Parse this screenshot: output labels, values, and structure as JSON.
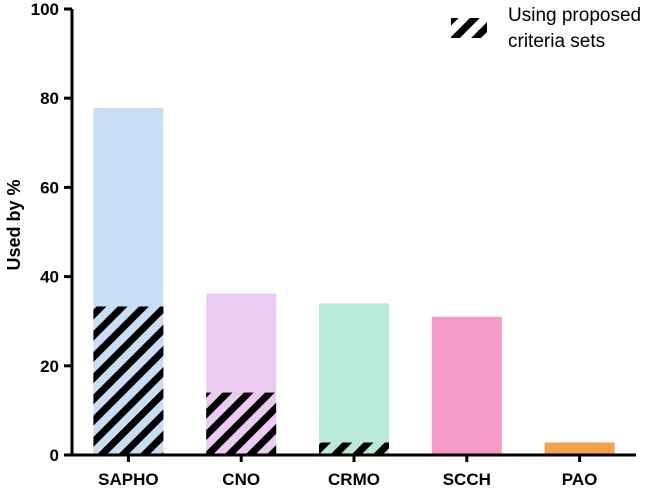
{
  "chart_data": {
    "type": "bar",
    "categories": [
      "SAPHO",
      "CNO",
      "CRMO",
      "SCCH",
      "PAO"
    ],
    "series": [
      {
        "values": [
          77.8,
          36.2,
          34.0,
          31.0,
          2.8
        ]
      },
      {
        "name": "Using proposed criteria sets",
        "values": [
          33.3,
          14.0,
          2.8,
          0,
          0
        ]
      }
    ],
    "colors": [
      "#c9ddf5",
      "#eccbf3",
      "#b9e9d8",
      "#f69ac8",
      "#f5a14e"
    ],
    "hatch_color": "#000000",
    "ylabel": "Used by %",
    "ylim": [
      0,
      100
    ],
    "yticks": [
      0,
      20,
      40,
      60,
      80,
      100
    ],
    "legend": {
      "label_line1": "Using proposed",
      "label_line2": "criteria sets",
      "placement": "top-right"
    },
    "grid": false
  }
}
